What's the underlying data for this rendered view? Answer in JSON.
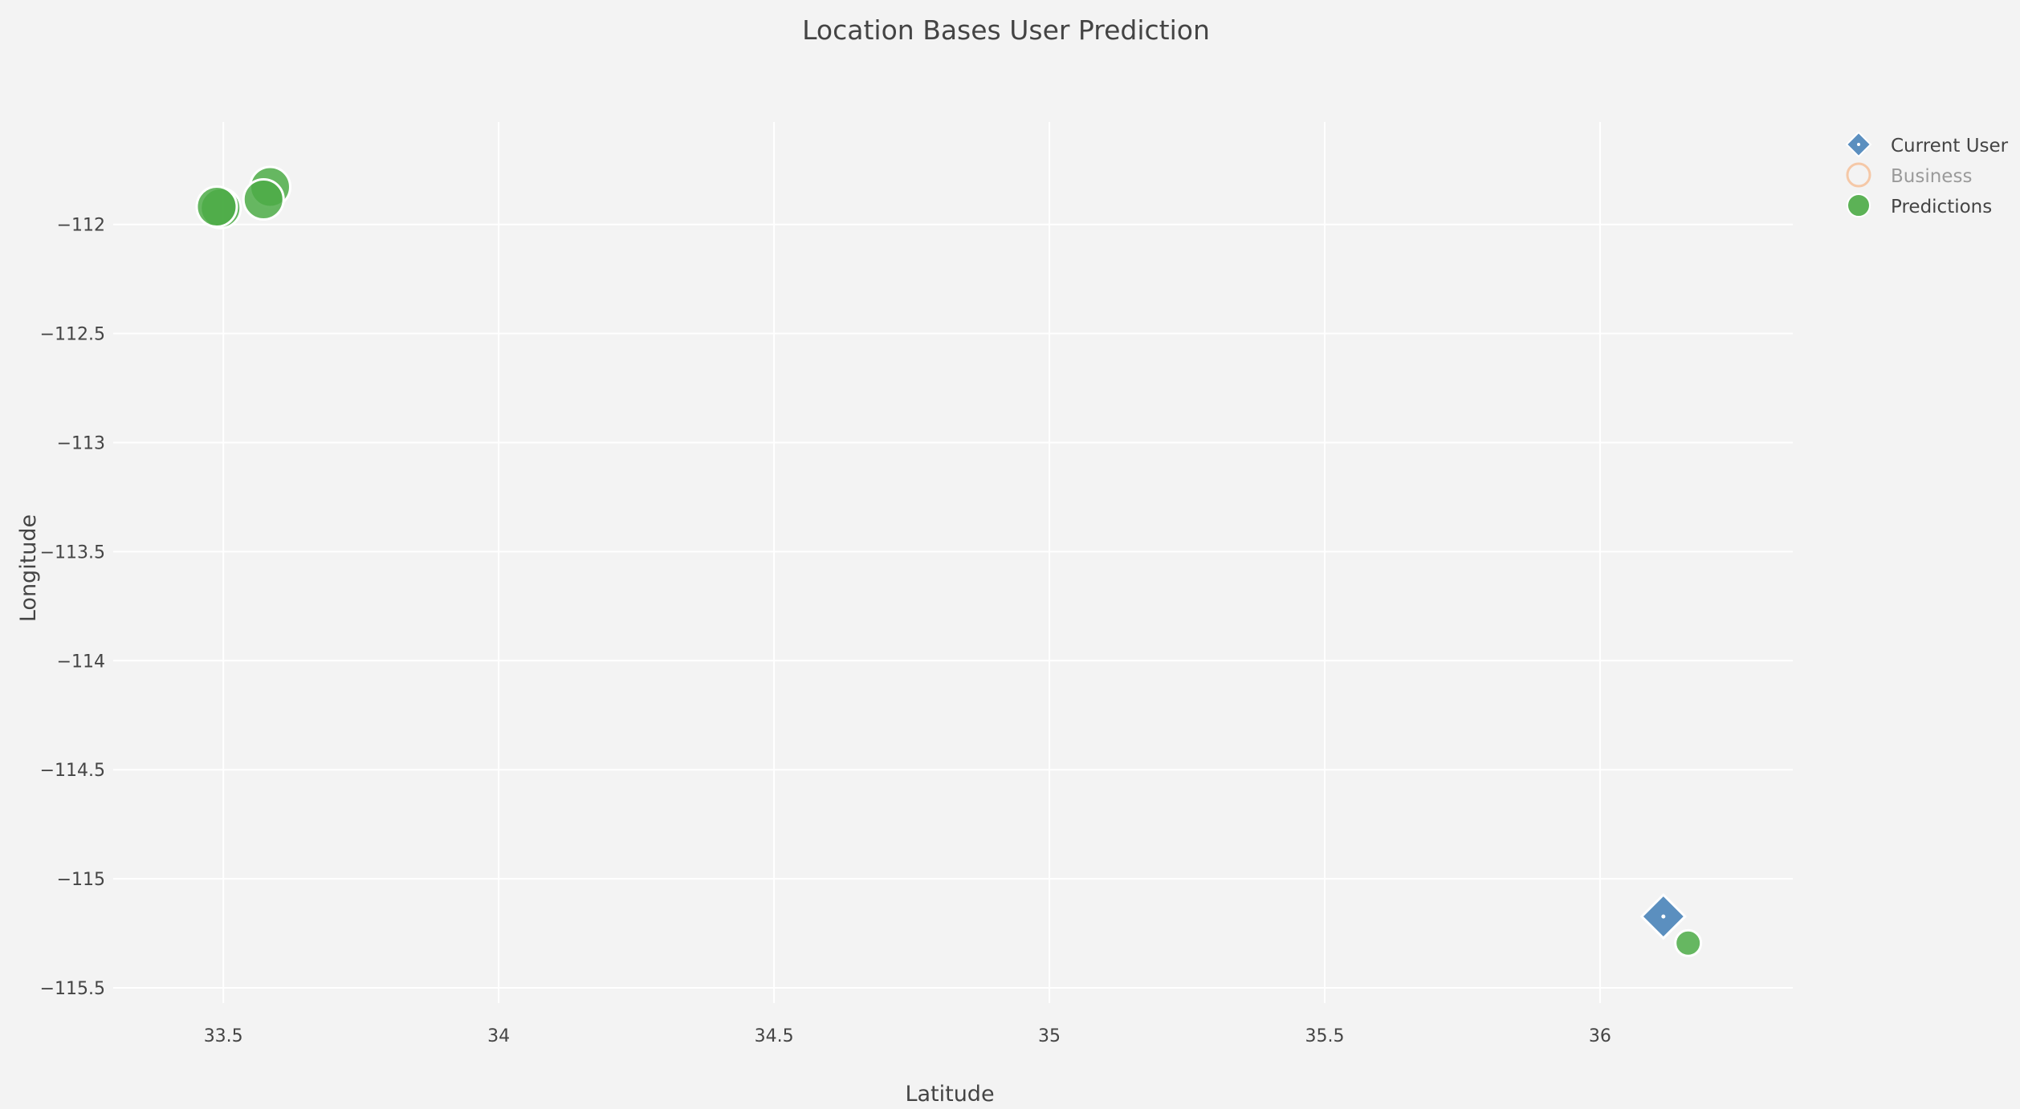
{
  "chart_data": {
    "type": "scatter",
    "title": "Location Bases User Prediction",
    "xlabel": "Latitude",
    "ylabel": "Longitude",
    "xlim": [
      33.3,
      36.35
    ],
    "ylim": [
      -115.57,
      -111.53
    ],
    "x_ticks": [
      33.5,
      34,
      34.5,
      35,
      35.5,
      36
    ],
    "x_tick_labels": [
      "33.5",
      "34",
      "34.5",
      "35",
      "35.5",
      "36"
    ],
    "y_ticks": [
      -112,
      -112.5,
      -113,
      -113.5,
      -114,
      -114.5,
      -115,
      -115.5
    ],
    "y_tick_labels": [
      "−112",
      "−112.5",
      "−113",
      "−113.5",
      "−114",
      "−114.5",
      "−115",
      "−115.5"
    ],
    "grid": true,
    "legend_position": "top-right",
    "series": [
      {
        "name": "Current User",
        "marker": "diamond",
        "color": "#5b8fbf",
        "x": [
          36.115
        ],
        "y": [
          -115.173
        ]
      },
      {
        "name": "Business",
        "marker": "open-circle",
        "color": "#f5c8a7",
        "visible": false,
        "x": [],
        "y": []
      },
      {
        "name": "Predictions",
        "marker": "circle",
        "color": "#4cab46",
        "x": [
          33.585,
          33.573,
          33.495,
          33.488,
          36.16
        ],
        "y": [
          -111.828,
          -111.885,
          -111.925,
          -111.918,
          -115.295
        ],
        "sizes": [
          "large",
          "large",
          "large",
          "large",
          "small"
        ]
      }
    ]
  }
}
